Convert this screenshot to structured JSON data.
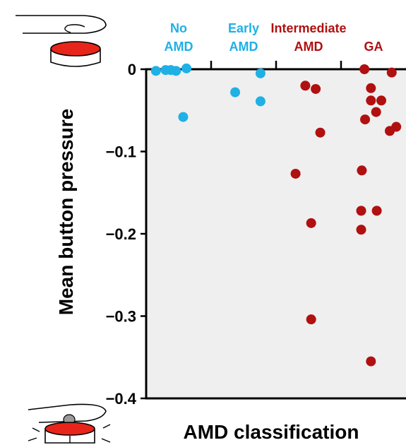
{
  "chart_data": {
    "type": "scatter",
    "title": "",
    "xlabel": "AMD classification",
    "ylabel": "Mean button pressure",
    "ylim": [
      -0.4,
      0
    ],
    "yticks": [
      0,
      -0.1,
      -0.2,
      -0.3,
      -0.4
    ],
    "ytick_labels": [
      "0",
      "−0.1",
      "−0.2",
      "−0.3",
      "−0.4"
    ],
    "grid": false,
    "categories": [
      {
        "lines": [
          "No",
          "AMD"
        ],
        "color": "#1fb0e6"
      },
      {
        "lines": [
          "Early",
          "AMD"
        ],
        "color": "#1fb0e6"
      },
      {
        "lines": [
          "Intermediate",
          "AMD"
        ],
        "color": "#b01010"
      },
      {
        "lines": [
          "GA"
        ],
        "color": "#b01010"
      }
    ],
    "series": [
      {
        "category": 0,
        "color": "#1fb0e6",
        "points": [
          [
            0.15,
            -0.002
          ],
          [
            0.3,
            -0.001
          ],
          [
            0.38,
            -0.001
          ],
          [
            0.46,
            -0.002
          ],
          [
            0.62,
            0.001
          ],
          [
            0.57,
            -0.058
          ]
        ]
      },
      {
        "category": 1,
        "color": "#1fb0e6",
        "points": [
          [
            0.37,
            -0.028
          ],
          [
            0.76,
            -0.005
          ],
          [
            0.76,
            -0.039
          ]
        ]
      },
      {
        "category": 2,
        "color": "#b01010",
        "points": [
          [
            0.45,
            -0.02
          ],
          [
            0.61,
            -0.024
          ],
          [
            0.68,
            -0.077
          ],
          [
            0.3,
            -0.127
          ],
          [
            0.54,
            -0.187
          ],
          [
            0.54,
            -0.304
          ]
        ]
      },
      {
        "category": 3,
        "color": "#b01010",
        "points": [
          [
            0.36,
            0.0
          ],
          [
            0.78,
            -0.004
          ],
          [
            0.46,
            -0.023
          ],
          [
            0.46,
            -0.038
          ],
          [
            0.62,
            -0.038
          ],
          [
            0.54,
            -0.052
          ],
          [
            0.37,
            -0.061
          ],
          [
            0.75,
            -0.075
          ],
          [
            0.85,
            -0.07
          ],
          [
            0.32,
            -0.123
          ],
          [
            0.31,
            -0.172
          ],
          [
            0.55,
            -0.172
          ],
          [
            0.31,
            -0.195
          ],
          [
            0.46,
            -0.355
          ]
        ]
      }
    ]
  },
  "icons": {
    "top": "hand-hovering-button-icon",
    "bottom": "hand-pressing-button-icon"
  }
}
